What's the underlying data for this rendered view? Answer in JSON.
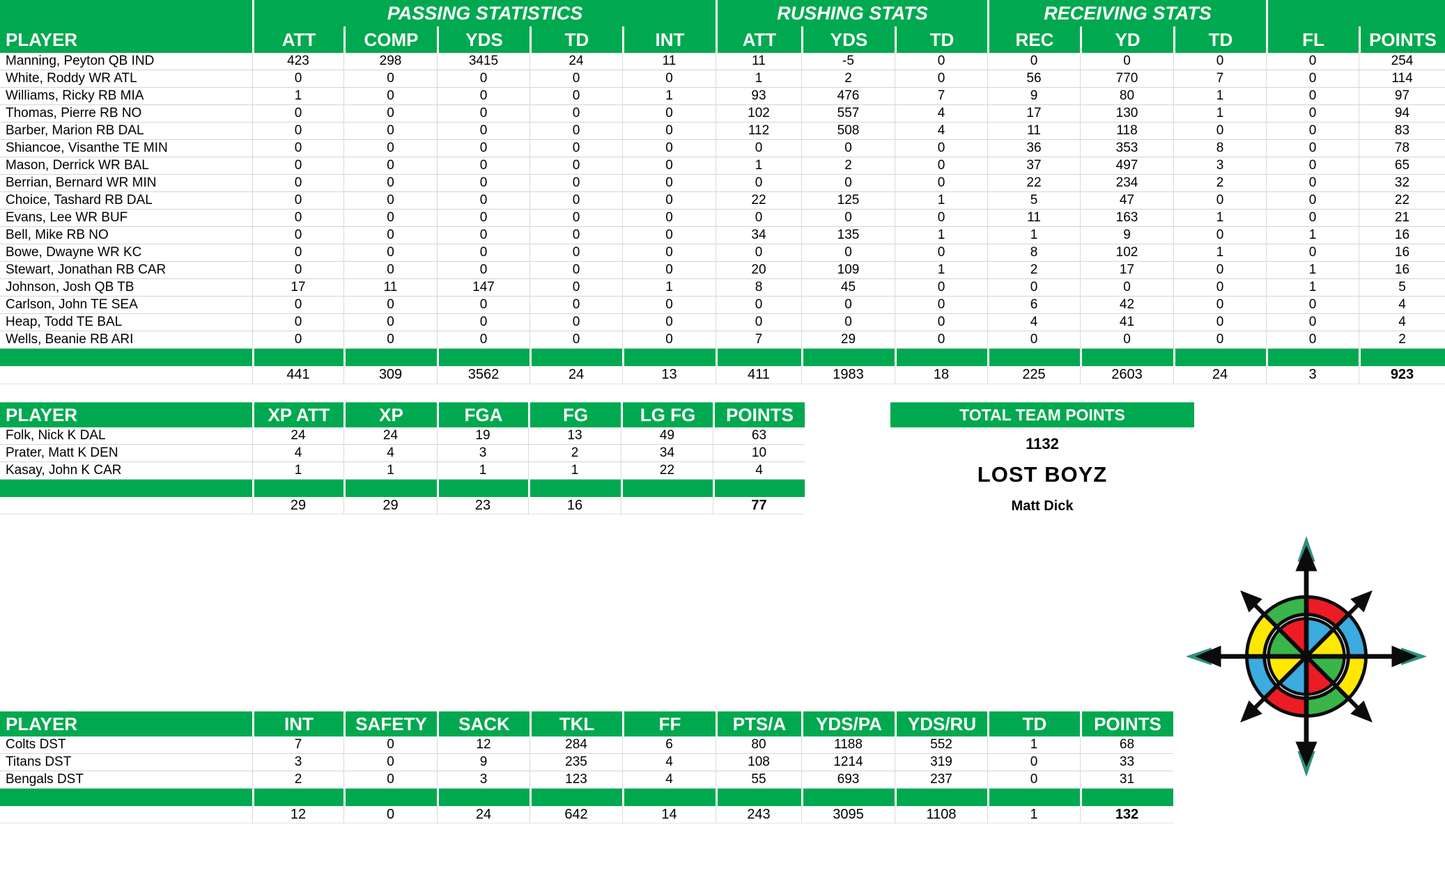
{
  "colors": {
    "header_green": "#00A94F",
    "header_text": "#FFFFFF",
    "grid_line": "#DADADA",
    "body_text": "#000000"
  },
  "skill_table": {
    "group_headers": [
      {
        "label": "",
        "span": 1
      },
      {
        "label": "PASSING STATISTICS",
        "span": 5
      },
      {
        "label": "RUSHING STATS",
        "span": 3
      },
      {
        "label": "RECEIVING STATS",
        "span": 3
      },
      {
        "label": "",
        "span": 2
      }
    ],
    "columns": [
      "PLAYER",
      "ATT",
      "COMP",
      "YDS",
      "TD",
      "INT",
      "ATT",
      "YDS",
      "TD",
      "REC",
      "YD",
      "TD",
      "FL",
      "POINTS"
    ],
    "rows": [
      [
        "Manning, Peyton QB IND",
        423,
        298,
        3415,
        24,
        11,
        11,
        -5,
        0,
        0,
        0,
        0,
        0,
        254
      ],
      [
        "White, Roddy WR ATL",
        0,
        0,
        0,
        0,
        0,
        1,
        2,
        0,
        56,
        770,
        7,
        0,
        114
      ],
      [
        "Williams, Ricky RB MIA",
        1,
        0,
        0,
        0,
        1,
        93,
        476,
        7,
        9,
        80,
        1,
        0,
        97
      ],
      [
        "Thomas, Pierre RB NO",
        0,
        0,
        0,
        0,
        0,
        102,
        557,
        4,
        17,
        130,
        1,
        0,
        94
      ],
      [
        "Barber, Marion RB DAL",
        0,
        0,
        0,
        0,
        0,
        112,
        508,
        4,
        11,
        118,
        0,
        0,
        83
      ],
      [
        "Shiancoe, Visanthe TE MIN",
        0,
        0,
        0,
        0,
        0,
        0,
        0,
        0,
        36,
        353,
        8,
        0,
        78
      ],
      [
        "Mason, Derrick WR BAL",
        0,
        0,
        0,
        0,
        0,
        1,
        2,
        0,
        37,
        497,
        3,
        0,
        65
      ],
      [
        "Berrian, Bernard WR MIN",
        0,
        0,
        0,
        0,
        0,
        0,
        0,
        0,
        22,
        234,
        2,
        0,
        32
      ],
      [
        "Choice, Tashard RB DAL",
        0,
        0,
        0,
        0,
        0,
        22,
        125,
        1,
        5,
        47,
        0,
        0,
        22
      ],
      [
        "Evans, Lee WR BUF",
        0,
        0,
        0,
        0,
        0,
        0,
        0,
        0,
        11,
        163,
        1,
        0,
        21
      ],
      [
        "Bell, Mike RB NO",
        0,
        0,
        0,
        0,
        0,
        34,
        135,
        1,
        1,
        9,
        0,
        1,
        16
      ],
      [
        "Bowe, Dwayne WR KC",
        0,
        0,
        0,
        0,
        0,
        0,
        0,
        0,
        8,
        102,
        1,
        0,
        16
      ],
      [
        "Stewart, Jonathan RB CAR",
        0,
        0,
        0,
        0,
        0,
        20,
        109,
        1,
        2,
        17,
        0,
        1,
        16
      ],
      [
        "Johnson, Josh QB TB",
        17,
        11,
        147,
        0,
        1,
        8,
        45,
        0,
        0,
        0,
        0,
        1,
        5
      ],
      [
        "Carlson, John TE SEA",
        0,
        0,
        0,
        0,
        0,
        0,
        0,
        0,
        6,
        42,
        0,
        0,
        4
      ],
      [
        "Heap, Todd TE BAL",
        0,
        0,
        0,
        0,
        0,
        0,
        0,
        0,
        4,
        41,
        0,
        0,
        4
      ],
      [
        "Wells, Beanie RB ARI",
        0,
        0,
        0,
        0,
        0,
        7,
        29,
        0,
        0,
        0,
        0,
        0,
        2
      ]
    ],
    "totals": [
      "",
      441,
      309,
      3562,
      24,
      13,
      411,
      1983,
      18,
      225,
      2603,
      24,
      3,
      923
    ]
  },
  "kicker_table": {
    "columns": [
      "PLAYER",
      "XP ATT",
      "XP",
      "FGA",
      "FG",
      "LG FG",
      "POINTS"
    ],
    "rows": [
      [
        "Folk, Nick K DAL",
        24,
        24,
        19,
        13,
        49,
        63
      ],
      [
        "Prater, Matt K DEN",
        4,
        4,
        3,
        2,
        34,
        10
      ],
      [
        "Kasay, John K CAR",
        1,
        1,
        1,
        1,
        22,
        4
      ]
    ],
    "totals": [
      "",
      29,
      29,
      23,
      16,
      "",
      77
    ]
  },
  "team_summary": {
    "header": "TOTAL TEAM POINTS",
    "total_points": "1132",
    "team_name": "LOST BOYZ",
    "owner": "Matt Dick"
  },
  "dst_table": {
    "columns": [
      "PLAYER",
      "INT",
      "SAFETY",
      "SACK",
      "TKL",
      "FF",
      "PTS/A",
      "YDS/PA",
      "YDS/RU",
      "TD",
      "POINTS"
    ],
    "rows": [
      [
        "Colts DST",
        7,
        0,
        12,
        284,
        6,
        80,
        1188,
        552,
        1,
        68
      ],
      [
        "Titans DST",
        3,
        0,
        9,
        235,
        4,
        108,
        1214,
        319,
        0,
        33
      ],
      [
        "Bengals DST",
        2,
        0,
        3,
        123,
        4,
        55,
        693,
        237,
        0,
        31
      ]
    ],
    "totals": [
      "",
      12,
      0,
      24,
      642,
      14,
      243,
      3095,
      1108,
      1,
      132
    ]
  },
  "logo": {
    "name": "compass-rose",
    "ring_colors": [
      "#ED1C24",
      "#3BABE0",
      "#FFE800",
      "#3AB54A",
      "#ED1C24",
      "#3BABE0",
      "#FFE800",
      "#3AB54A"
    ],
    "wedge_colors": [
      "#3BABE0",
      "#FFE800",
      "#3AB54A",
      "#ED1C24",
      "#3BABE0",
      "#FFE800",
      "#3AB54A",
      "#ED1C24"
    ],
    "arrow_color": "#0B0B0B",
    "arrow_tip_color": "#2F8F80"
  }
}
